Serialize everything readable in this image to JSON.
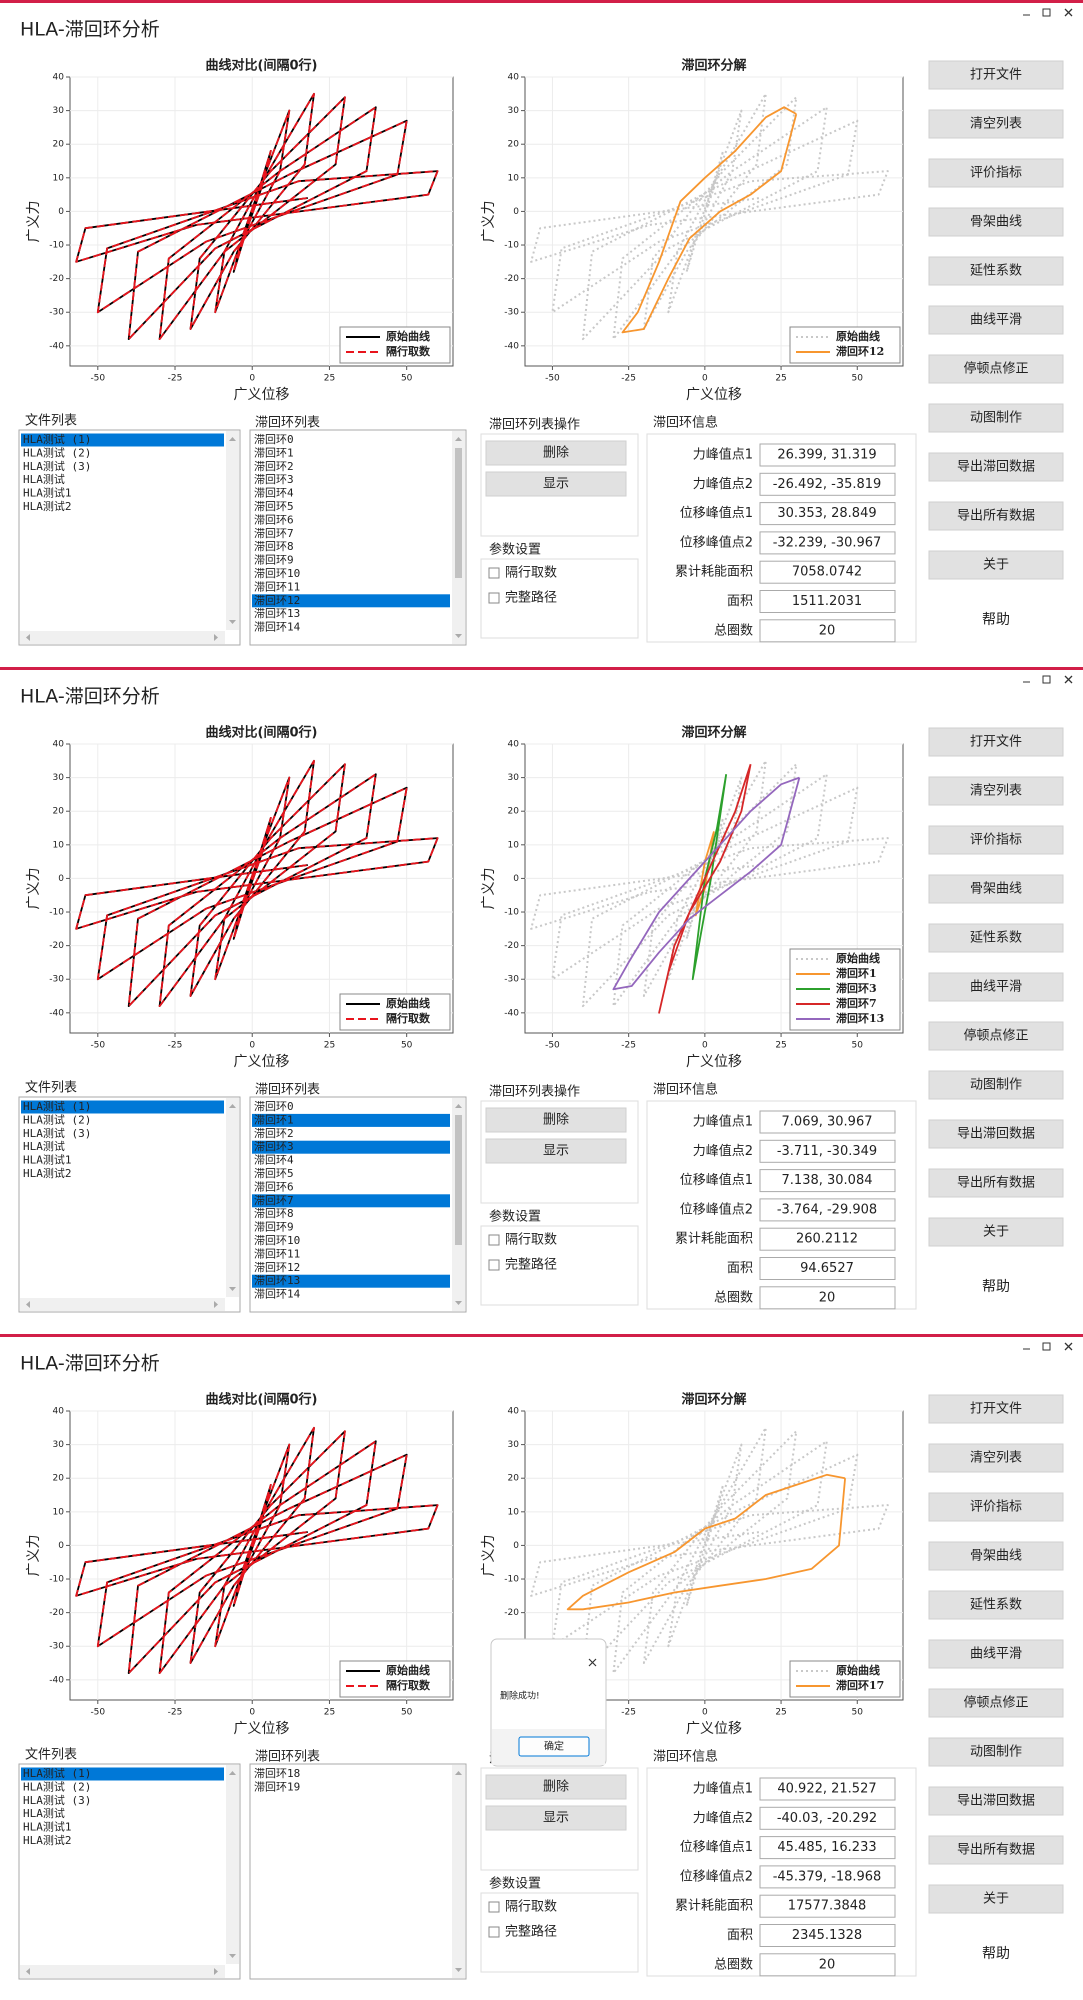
{
  "app": {
    "title": "HLA-滞回环分析",
    "file_list": {
      "label": "文件列表",
      "items": [
        "HLA测试 (1)",
        "HLA测试 (2)",
        "HLA测试 (3)",
        "HLA测试",
        "HLA测试1",
        "HLA测试2"
      ],
      "selected": [
        0
      ]
    },
    "loop_list_label": "滞回环列表",
    "ops": {
      "label": "滞回环列表操作",
      "buttons": [
        "删除",
        "显示"
      ]
    },
    "params": {
      "label": "参数设置",
      "options": [
        "隔行取数",
        "完整路径"
      ]
    },
    "info": {
      "label": "滞回环信息",
      "rows": [
        "力峰值点1",
        "力峰值点2",
        "位移峰值点1",
        "位移峰值点2",
        "累计耗能面积",
        "面积",
        "总圈数"
      ]
    },
    "buttons": [
      "打开文件",
      "清空列表",
      "评价指标",
      "骨架曲线",
      "延性系数",
      "曲线平滑",
      "停顿点修正",
      "动图制作",
      "导出滞回数据",
      "导出所有数据",
      "关于"
    ],
    "help": "帮助"
  },
  "chart_data": [
    {
      "type": "line",
      "title": "曲线对比(间隔0行)",
      "x_label": "广义位移",
      "y_label": "广义力",
      "xlim": [
        -59,
        65
      ],
      "ylim": [
        -46,
        40
      ],
      "xticks": [
        -50,
        -25,
        0,
        25,
        50
      ],
      "yticks": [
        -40,
        -30,
        -20,
        -10,
        0,
        10,
        20,
        30,
        40
      ],
      "grid": true,
      "series": [
        {
          "name": "原始曲线",
          "color": "#000000",
          "dash": "solid",
          "x": [
            0,
            6,
            3,
            -2,
            -6,
            -3,
            2,
            12,
            9,
            -4,
            -12,
            -9,
            4,
            20,
            17,
            -6,
            -20,
            -17,
            6,
            30,
            27,
            -9,
            -30,
            -27,
            9,
            40,
            37,
            -12,
            -40,
            -37,
            12,
            50,
            47,
            -15,
            -50,
            -47,
            15,
            60,
            57,
            -18,
            -57,
            -54,
            18
          ],
          "values": [
            0,
            18,
            7,
            -6,
            -18,
            -7,
            6,
            30,
            12,
            -10,
            -30,
            -12,
            10,
            35,
            14,
            -12,
            -35,
            -14,
            12,
            34,
            14,
            -12,
            -38,
            -14,
            12,
            31,
            12,
            -11,
            -38,
            -12,
            11,
            27,
            11,
            -9,
            -30,
            -11,
            9,
            12,
            5,
            -4,
            -15,
            -5,
            4
          ]
        },
        {
          "name": "隔行取数",
          "color": "#e8141c",
          "dash": "dashed",
          "x": [
            0,
            6,
            3,
            -2,
            -6,
            -3,
            2,
            12,
            9,
            -4,
            -12,
            -9,
            4,
            20,
            17,
            -6,
            -20,
            -17,
            6,
            30,
            27,
            -9,
            -30,
            -27,
            9,
            40,
            37,
            -12,
            -40,
            -37,
            12,
            50,
            47,
            -15,
            -50,
            -47,
            15,
            60,
            57,
            -18,
            -57,
            -54,
            18
          ],
          "values": [
            0,
            18,
            7,
            -6,
            -18,
            -7,
            6,
            30,
            12,
            -10,
            -30,
            -12,
            10,
            35,
            14,
            -12,
            -35,
            -14,
            12,
            34,
            14,
            -12,
            -38,
            -14,
            12,
            31,
            12,
            -11,
            -38,
            -12,
            11,
            27,
            11,
            -9,
            -30,
            -11,
            9,
            12,
            5,
            -4,
            -15,
            -5,
            4
          ]
        }
      ]
    },
    {
      "type": "line",
      "title": "滞回环分解",
      "x_label": "广义位移",
      "y_label": "广义力",
      "xlim": [
        -59,
        65
      ],
      "ylim": [
        -46,
        40
      ],
      "xticks": [
        -50,
        -25,
        0,
        25,
        50
      ],
      "yticks": [
        -40,
        -30,
        -20,
        -10,
        0,
        10,
        20,
        30,
        40
      ],
      "grid": true,
      "series": [
        {
          "name": "原始曲线",
          "color": "#c8c8c8",
          "dash": "dotted"
        },
        {
          "name": "滞回环12",
          "color": "#f7962f",
          "dash": "solid",
          "x": [
            30,
            26,
            20,
            10,
            0,
            -8,
            -15,
            -22,
            -27,
            -20,
            -12,
            -5,
            5,
            15,
            25,
            30
          ],
          "values": [
            29,
            31,
            28,
            18,
            10,
            3,
            -15,
            -30,
            -36,
            -35,
            -20,
            -8,
            0,
            5,
            12,
            29
          ]
        }
      ]
    },
    {
      "type": "line",
      "title": "滞回环分解",
      "x_label": "广义位移",
      "y_label": "广义力",
      "xlim": [
        -59,
        65
      ],
      "ylim": [
        -46,
        40
      ],
      "xticks": [
        -50,
        -25,
        0,
        25,
        50
      ],
      "yticks": [
        -40,
        -30,
        -20,
        -10,
        0,
        10,
        20,
        30,
        40
      ],
      "grid": true,
      "series": [
        {
          "name": "原始曲线",
          "color": "#c8c8c8",
          "dash": "dotted"
        },
        {
          "name": "滞回环1",
          "color": "#f7962f",
          "dash": "solid",
          "x": [
            3,
            0,
            -3,
            0,
            3
          ],
          "values": [
            14,
            5,
            -11,
            -3,
            14
          ]
        },
        {
          "name": "滞回环3",
          "color": "#2ca02c",
          "dash": "solid",
          "x": [
            7,
            4,
            0,
            -4,
            -1,
            2,
            7
          ],
          "values": [
            31,
            15,
            0,
            -30,
            -15,
            0,
            31
          ]
        },
        {
          "name": "滞回环7",
          "color": "#d62728",
          "dash": "solid",
          "x": [
            15,
            10,
            0,
            -10,
            -15,
            -12,
            -5,
            5,
            12,
            15
          ],
          "values": [
            34,
            20,
            0,
            -20,
            -40,
            -28,
            -10,
            5,
            20,
            34
          ]
        },
        {
          "name": "滞回环13",
          "color": "#9467bd",
          "dash": "solid",
          "x": [
            31,
            25,
            15,
            5,
            -5,
            -15,
            -25,
            -30,
            -24,
            -15,
            -5,
            5,
            15,
            25,
            31
          ],
          "values": [
            30,
            28,
            20,
            10,
            0,
            -10,
            -25,
            -33,
            -32,
            -22,
            -12,
            -5,
            2,
            10,
            30
          ]
        }
      ]
    },
    {
      "type": "line",
      "title": "滞回环分解",
      "x_label": "广义位移",
      "y_label": "广义力",
      "xlim": [
        -59,
        65
      ],
      "ylim": [
        -46,
        40
      ],
      "xticks": [
        -50,
        -25,
        0,
        25,
        50
      ],
      "yticks": [
        -40,
        -30,
        -20,
        -10,
        0,
        10,
        20,
        30,
        40
      ],
      "grid": true,
      "series": [
        {
          "name": "原始曲线",
          "color": "#c8c8c8",
          "dash": "dotted"
        },
        {
          "name": "滞回环17",
          "color": "#f7962f",
          "dash": "solid",
          "x": [
            46,
            40,
            30,
            20,
            10,
            0,
            -10,
            -25,
            -40,
            -45,
            -40,
            -25,
            -10,
            5,
            20,
            35,
            44,
            46
          ],
          "values": [
            20,
            21,
            18,
            15,
            8,
            5,
            -2,
            -8,
            -15,
            -19,
            -19,
            -17,
            -14,
            -12,
            -10,
            -7,
            0,
            20
          ]
        }
      ]
    }
  ],
  "windows": [
    {
      "loop_items": [
        "滞回环0",
        "滞回环1",
        "滞回环2",
        "滞回环3",
        "滞回环4",
        "滞回环5",
        "滞回环6",
        "滞回环7",
        "滞回环8",
        "滞回环9",
        "滞回环10",
        "滞回环11",
        "滞回环12",
        "滞回环13",
        "滞回环14"
      ],
      "loop_selected": [
        12
      ],
      "info_values": [
        "26.399, 31.319",
        "-26.492, -35.819",
        "30.353, 28.849",
        "-32.239, -30.967",
        "7058.0742",
        "1511.2031",
        "20"
      ]
    },
    {
      "loop_items": [
        "滞回环0",
        "滞回环1",
        "滞回环2",
        "滞回环3",
        "滞回环4",
        "滞回环5",
        "滞回环6",
        "滞回环7",
        "滞回环8",
        "滞回环9",
        "滞回环10",
        "滞回环11",
        "滞回环12",
        "滞回环13",
        "滞回环14"
      ],
      "loop_selected": [
        1,
        3,
        7,
        13
      ],
      "info_values": [
        "7.069, 30.967",
        "-3.711, -30.349",
        "7.138, 30.084",
        "-3.764, -29.908",
        "260.2112",
        "94.6527",
        "20"
      ]
    },
    {
      "loop_items": [
        "滞回环18",
        "滞回环19"
      ],
      "loop_selected": [],
      "info_values": [
        "40.922, 21.527",
        "-40.03, -20.292",
        "45.485, 16.233",
        "-45.379, -18.968",
        "17577.3848",
        "2345.1328",
        "20"
      ],
      "dialog": {
        "message": "删除成功!",
        "button": "确定"
      }
    }
  ]
}
